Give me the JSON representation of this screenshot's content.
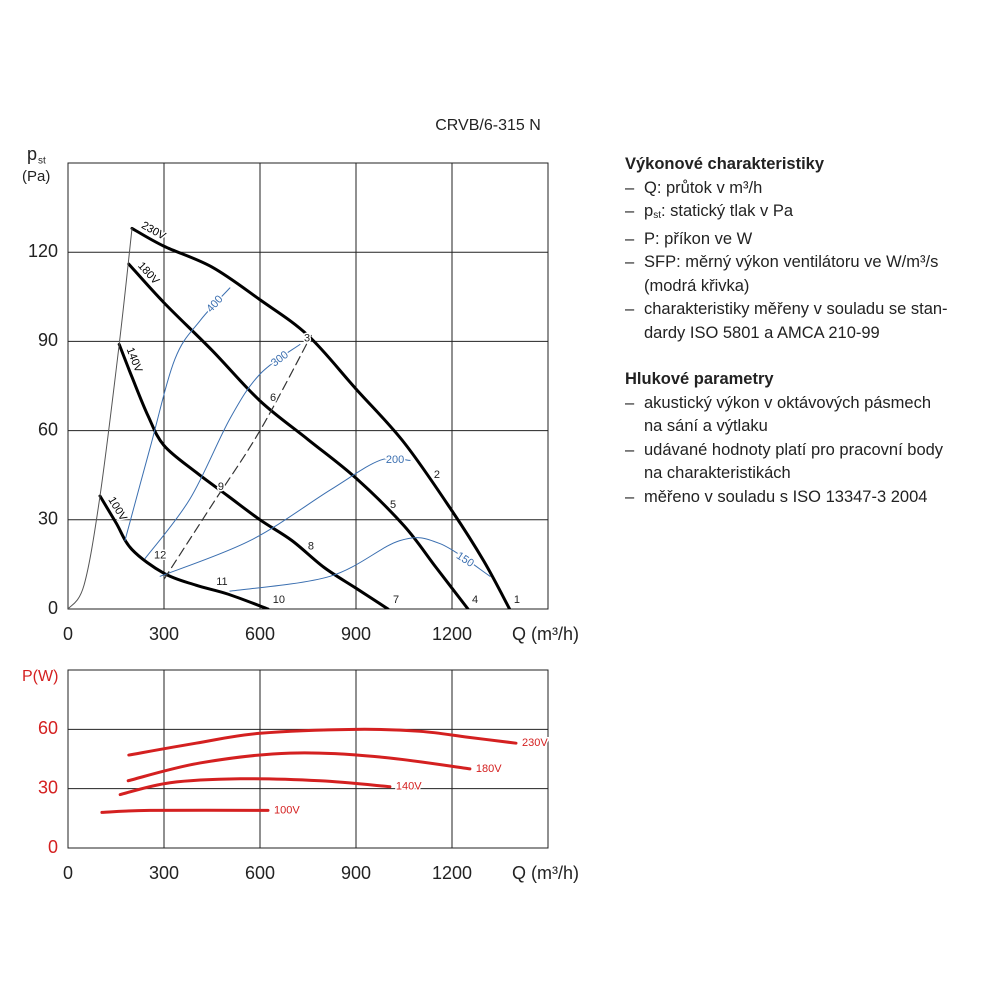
{
  "chart_data": [
    {
      "type": "line",
      "title": "CRVB/6-315 N",
      "ylabel": "p",
      "ylabel_sub": "st",
      "ylabel_unit": "(Pa)",
      "xlabel": "Q (m³/h)",
      "xlim": [
        0,
        1500
      ],
      "ylim": [
        0,
        150
      ],
      "xticks": [
        0,
        300,
        600,
        900,
        1200
      ],
      "yticks": [
        0,
        30,
        60,
        90,
        120
      ],
      "grid": true,
      "series": [
        {
          "name": "230V",
          "color": "#000000",
          "x": [
            200,
            300,
            450,
            600,
            750,
            900,
            1050,
            1200,
            1300,
            1380
          ],
          "values": [
            128,
            122,
            115,
            104,
            92,
            74,
            56,
            33,
            16,
            0
          ]
        },
        {
          "name": "180V",
          "color": "#000000",
          "x": [
            190,
            300,
            450,
            600,
            750,
            900,
            1050,
            1150,
            1250
          ],
          "values": [
            116,
            103,
            87,
            70,
            57,
            44,
            28,
            14,
            0
          ]
        },
        {
          "name": "140V",
          "color": "#000000",
          "x": [
            160,
            200,
            250,
            300,
            400,
            500,
            600,
            700,
            800,
            900,
            1000
          ],
          "values": [
            89,
            78,
            65,
            55,
            46,
            38,
            30,
            23,
            14,
            7,
            0
          ]
        },
        {
          "name": "100V",
          "color": "#000000",
          "x": [
            100,
            150,
            200,
            300,
            400,
            500,
            625
          ],
          "values": [
            38,
            29,
            20,
            12,
            8,
            5,
            0
          ]
        },
        {
          "name": "400",
          "color": "#3b6fb0",
          "x": [
            178,
            256,
            334,
            413,
            506
          ],
          "values": [
            23,
            54,
            84,
            97,
            108
          ]
        },
        {
          "name": "300",
          "color": "#3b6fb0",
          "x": [
            241,
            381,
            506,
            600,
            725
          ],
          "values": [
            17,
            37,
            64,
            79,
            89
          ]
        },
        {
          "name": "200",
          "color": "#3b6fb0",
          "x": [
            288,
            569,
            819,
            975,
            1069
          ],
          "values": [
            11,
            23,
            40,
            50,
            50
          ]
        },
        {
          "name": "150",
          "color": "#3b6fb0",
          "x": [
            506,
            819,
            1037,
            1162,
            1319
          ],
          "values": [
            6,
            11,
            23,
            22,
            11
          ]
        },
        {
          "color": "#555555",
          "x": [
            0,
            50,
            100,
            160,
            200
          ],
          "values": [
            0,
            8,
            38,
            89,
            128
          ]
        },
        {
          "color": "#333333",
          "style": "dashed",
          "x": [
            300,
            450,
            600,
            760
          ],
          "values": [
            10,
            35,
            60,
            92
          ]
        }
      ],
      "annotations": [
        {
          "text": "1",
          "x": 1403,
          "y": 3
        },
        {
          "text": "2",
          "x": 1153,
          "y": 45
        },
        {
          "text": "3",
          "x": 747,
          "y": 91
        },
        {
          "text": "4",
          "x": 1272,
          "y": 3
        },
        {
          "text": "5",
          "x": 1016,
          "y": 35
        },
        {
          "text": "6",
          "x": 641,
          "y": 71
        },
        {
          "text": "7",
          "x": 1025,
          "y": 3
        },
        {
          "text": "8",
          "x": 759,
          "y": 21
        },
        {
          "text": "9",
          "x": 478,
          "y": 41
        },
        {
          "text": "10",
          "x": 659,
          "y": 3
        },
        {
          "text": "11",
          "x": 481,
          "y": 9
        },
        {
          "text": "12",
          "x": 288,
          "y": 18
        }
      ]
    },
    {
      "type": "line",
      "ylabel": "P(W)",
      "xlabel": "Q (m³/h)",
      "xlim": [
        0,
        1500
      ],
      "ylim": [
        0,
        90
      ],
      "xticks": [
        0,
        300,
        600,
        900,
        1200
      ],
      "yticks": [
        0,
        30,
        60
      ],
      "grid": true,
      "axis_color": "#d42020",
      "series": [
        {
          "name": "230V",
          "color": "#d42020",
          "x": [
            190,
            400,
            600,
            900,
            1100,
            1250,
            1400
          ],
          "values": [
            47,
            53,
            58,
            60,
            59,
            56,
            53
          ]
        },
        {
          "name": "180V",
          "color": "#d42020",
          "x": [
            188,
            413,
            694,
            975,
            1256
          ],
          "values": [
            34,
            43,
            48,
            46,
            40
          ]
        },
        {
          "name": "140V",
          "color": "#d42020",
          "x": [
            163,
            319,
            538,
            788,
            1006
          ],
          "values": [
            27,
            33,
            35,
            34,
            31
          ]
        },
        {
          "name": "100V",
          "color": "#d42020",
          "x": [
            106,
            256,
            625
          ],
          "values": [
            18,
            19,
            19
          ]
        }
      ]
    }
  ],
  "notes": {
    "heading1": "Výkonové charakteristiky",
    "items1": [
      [
        "Q: průtok v m³/h"
      ],
      [
        "p",
        "st",
        ": statický tlak v Pa"
      ],
      [
        "P: příkon ve W"
      ],
      [
        "SFP: měrný výkon ventilátoru ve W/m³/s",
        "(modrá křivka)"
      ],
      [
        "charakteristiky měřeny v souladu se stan-",
        "dardy ISO 5801 a AMCA 210-99"
      ]
    ],
    "heading2": "Hlukové parametry",
    "items2": [
      [
        "akustický výkon v oktávových pásmech",
        "na sání a výtlaku"
      ],
      [
        "udávané hodnoty platí pro pracovní body",
        "na charakteristikách"
      ],
      [
        "měřeno v souladu s ISO 13347-3 2004"
      ]
    ]
  }
}
